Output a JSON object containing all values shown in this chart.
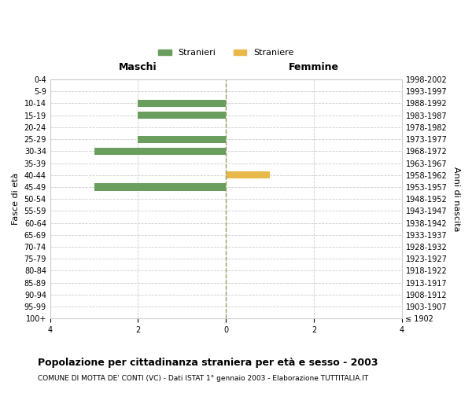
{
  "age_groups": [
    "100+",
    "95-99",
    "90-94",
    "85-89",
    "80-84",
    "75-79",
    "70-74",
    "65-69",
    "60-64",
    "55-59",
    "50-54",
    "45-49",
    "40-44",
    "35-39",
    "30-34",
    "25-29",
    "20-24",
    "15-19",
    "10-14",
    "5-9",
    "0-4"
  ],
  "birth_years": [
    "≤ 1902",
    "1903-1907",
    "1908-1912",
    "1913-1917",
    "1918-1922",
    "1923-1927",
    "1928-1932",
    "1933-1937",
    "1938-1942",
    "1943-1947",
    "1948-1952",
    "1953-1957",
    "1958-1962",
    "1963-1967",
    "1968-1972",
    "1973-1977",
    "1978-1982",
    "1983-1987",
    "1988-1992",
    "1993-1997",
    "1998-2002"
  ],
  "maschi_stranieri": [
    0,
    0,
    0,
    0,
    0,
    0,
    0,
    0,
    0,
    0,
    0,
    3,
    0,
    0,
    3,
    2,
    0,
    2,
    2,
    0,
    0
  ],
  "femmine_straniere": [
    0,
    0,
    0,
    0,
    0,
    0,
    0,
    0,
    0,
    0,
    0,
    0,
    1,
    0,
    0,
    0,
    0,
    0,
    0,
    0,
    0
  ],
  "color_maschi": "#6a9e5e",
  "color_femmine": "#e8b84b",
  "xlim": 4,
  "xlabel_left": "Maschi",
  "xlabel_right": "Femmine",
  "ylabel_left": "Fasce di età",
  "ylabel_right": "Anni di nascita",
  "title": "Popolazione per cittadinanza straniera per età e sesso - 2003",
  "subtitle": "COMUNE DI MOTTA DE' CONTI (VC) - Dati ISTAT 1° gennaio 2003 - Elaborazione TUTTITALIA.IT",
  "legend_maschi": "Stranieri",
  "legend_femmine": "Straniere",
  "bg_color": "#ffffff",
  "grid_color": "#cccccc",
  "center_line_color": "#999966"
}
